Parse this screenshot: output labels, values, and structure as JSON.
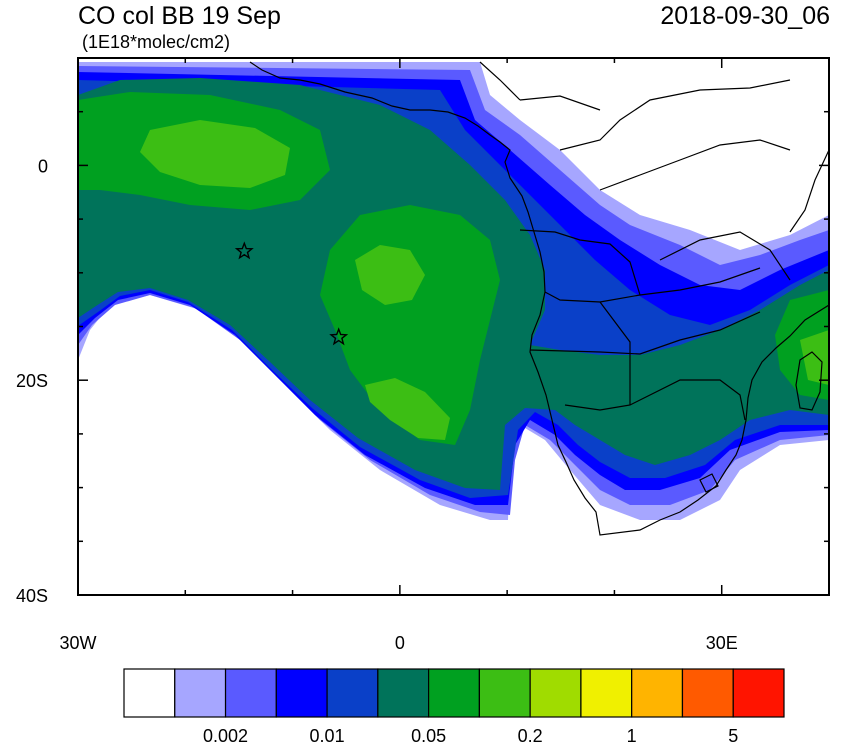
{
  "title": {
    "left": "CO col BB 19 Sep",
    "units": "(1E18*molec/cm2)",
    "right": "2018-09-30_06"
  },
  "axes": {
    "lon_range": [
      -30,
      40
    ],
    "lat_range": [
      -40,
      10
    ],
    "y_tick_labels": [
      {
        "lat": 0,
        "label": "0"
      },
      {
        "lat": -20,
        "label": "20S"
      },
      {
        "lat": -40,
        "label": "40S"
      }
    ],
    "x_tick_labels": [
      {
        "lon": -30,
        "label": "30W"
      },
      {
        "lon": 0,
        "label": "0"
      },
      {
        "lon": 30,
        "label": "30E"
      }
    ]
  },
  "markers": [
    {
      "name": "star-marker",
      "lon": -14.5,
      "lat": -8
    },
    {
      "name": "star-marker",
      "lon": -5.7,
      "lat": -16
    }
  ],
  "colorbar": {
    "colors": [
      "#ffffff",
      "#a6a6ff",
      "#5a5aff",
      "#0000ff",
      "#0a40c8",
      "#00735a",
      "#00a020",
      "#3cbe14",
      "#a0dc00",
      "#f0f000",
      "#ffb400",
      "#ff5a00",
      "#ff1400"
    ],
    "labels": [
      {
        "after_box": 2,
        "text": "0.002"
      },
      {
        "after_box": 4,
        "text": "0.01"
      },
      {
        "after_box": 6,
        "text": "0.05"
      },
      {
        "after_box": 8,
        "text": "0.2"
      },
      {
        "after_box": 10,
        "text": "1"
      },
      {
        "after_box": 12,
        "text": "5"
      }
    ]
  },
  "colors": {
    "very_low": "#a6a6ff",
    "low": "#5a5aff",
    "blue": "#0000ff",
    "dark_blue": "#0a40c8",
    "teal": "#00735a",
    "green": "#00a020",
    "light_green": "#3cbe14"
  }
}
